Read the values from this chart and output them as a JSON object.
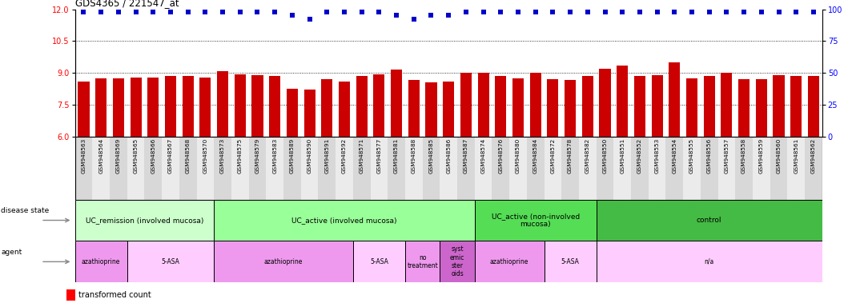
{
  "title": "GDS4365 / 221547_at",
  "samples": [
    "GSM948563",
    "GSM948564",
    "GSM948569",
    "GSM948565",
    "GSM948566",
    "GSM948567",
    "GSM948568",
    "GSM948570",
    "GSM948573",
    "GSM948575",
    "GSM948579",
    "GSM948583",
    "GSM948589",
    "GSM948590",
    "GSM948591",
    "GSM948592",
    "GSM948571",
    "GSM948577",
    "GSM948581",
    "GSM948588",
    "GSM948585",
    "GSM948586",
    "GSM948587",
    "GSM948574",
    "GSM948576",
    "GSM948580",
    "GSM948584",
    "GSM948572",
    "GSM948578",
    "GSM948582",
    "GSM948550",
    "GSM948551",
    "GSM948552",
    "GSM948553",
    "GSM948554",
    "GSM948555",
    "GSM948556",
    "GSM948557",
    "GSM948558",
    "GSM948559",
    "GSM948560",
    "GSM948561",
    "GSM948562"
  ],
  "bar_values": [
    8.6,
    8.75,
    8.75,
    8.8,
    8.8,
    8.85,
    8.85,
    8.8,
    9.1,
    8.95,
    8.9,
    8.85,
    8.25,
    8.2,
    8.7,
    8.6,
    8.85,
    8.95,
    9.15,
    8.65,
    8.55,
    8.6,
    9.0,
    9.0,
    8.85,
    8.75,
    9.0,
    8.7,
    8.65,
    8.85,
    9.2,
    9.35,
    8.85,
    8.9,
    9.5,
    8.75,
    8.85,
    9.0,
    8.7,
    8.7,
    8.9,
    8.85,
    8.85
  ],
  "percentile_values": [
    98,
    98,
    98,
    98,
    98,
    98,
    98,
    98,
    98,
    98,
    98,
    98,
    95,
    92,
    98,
    98,
    98,
    98,
    95,
    92,
    95,
    95,
    98,
    98,
    98,
    98,
    98,
    98,
    98,
    98,
    98,
    98,
    98,
    98,
    98,
    98,
    98,
    98,
    98,
    98,
    98,
    98,
    98
  ],
  "ylim_left": [
    6,
    12
  ],
  "ylim_right": [
    0,
    100
  ],
  "yticks_left": [
    6,
    7.5,
    9,
    10.5,
    12
  ],
  "yticks_right": [
    0,
    25,
    50,
    75,
    100
  ],
  "bar_color": "#cc0000",
  "dot_color": "#0000cc",
  "disease_state_groups": [
    {
      "label": "UC_remission (involved mucosa)",
      "start": 0,
      "end": 8,
      "color": "#ccffcc"
    },
    {
      "label": "UC_active (involved mucosa)",
      "start": 8,
      "end": 23,
      "color": "#99ff99"
    },
    {
      "label": "UC_active (non-involved\nmucosa)",
      "start": 23,
      "end": 30,
      "color": "#55dd55"
    },
    {
      "label": "control",
      "start": 30,
      "end": 43,
      "color": "#44bb44"
    }
  ],
  "agent_groups": [
    {
      "label": "azathioprine",
      "start": 0,
      "end": 3,
      "color": "#ee99ee"
    },
    {
      "label": "5-ASA",
      "start": 3,
      "end": 8,
      "color": "#ffccff"
    },
    {
      "label": "azathioprine",
      "start": 8,
      "end": 16,
      "color": "#ee99ee"
    },
    {
      "label": "5-ASA",
      "start": 16,
      "end": 19,
      "color": "#ffccff"
    },
    {
      "label": "no\ntreatment",
      "start": 19,
      "end": 21,
      "color": "#ee99ee"
    },
    {
      "label": "syst\nemic\nster\noids",
      "start": 21,
      "end": 23,
      "color": "#cc66cc"
    },
    {
      "label": "azathioprine",
      "start": 23,
      "end": 27,
      "color": "#ee99ee"
    },
    {
      "label": "5-ASA",
      "start": 27,
      "end": 30,
      "color": "#ffccff"
    },
    {
      "label": "n/a",
      "start": 30,
      "end": 43,
      "color": "#ffccff"
    }
  ],
  "tick_colors": [
    "#d8d8d8",
    "#ebebeb"
  ]
}
